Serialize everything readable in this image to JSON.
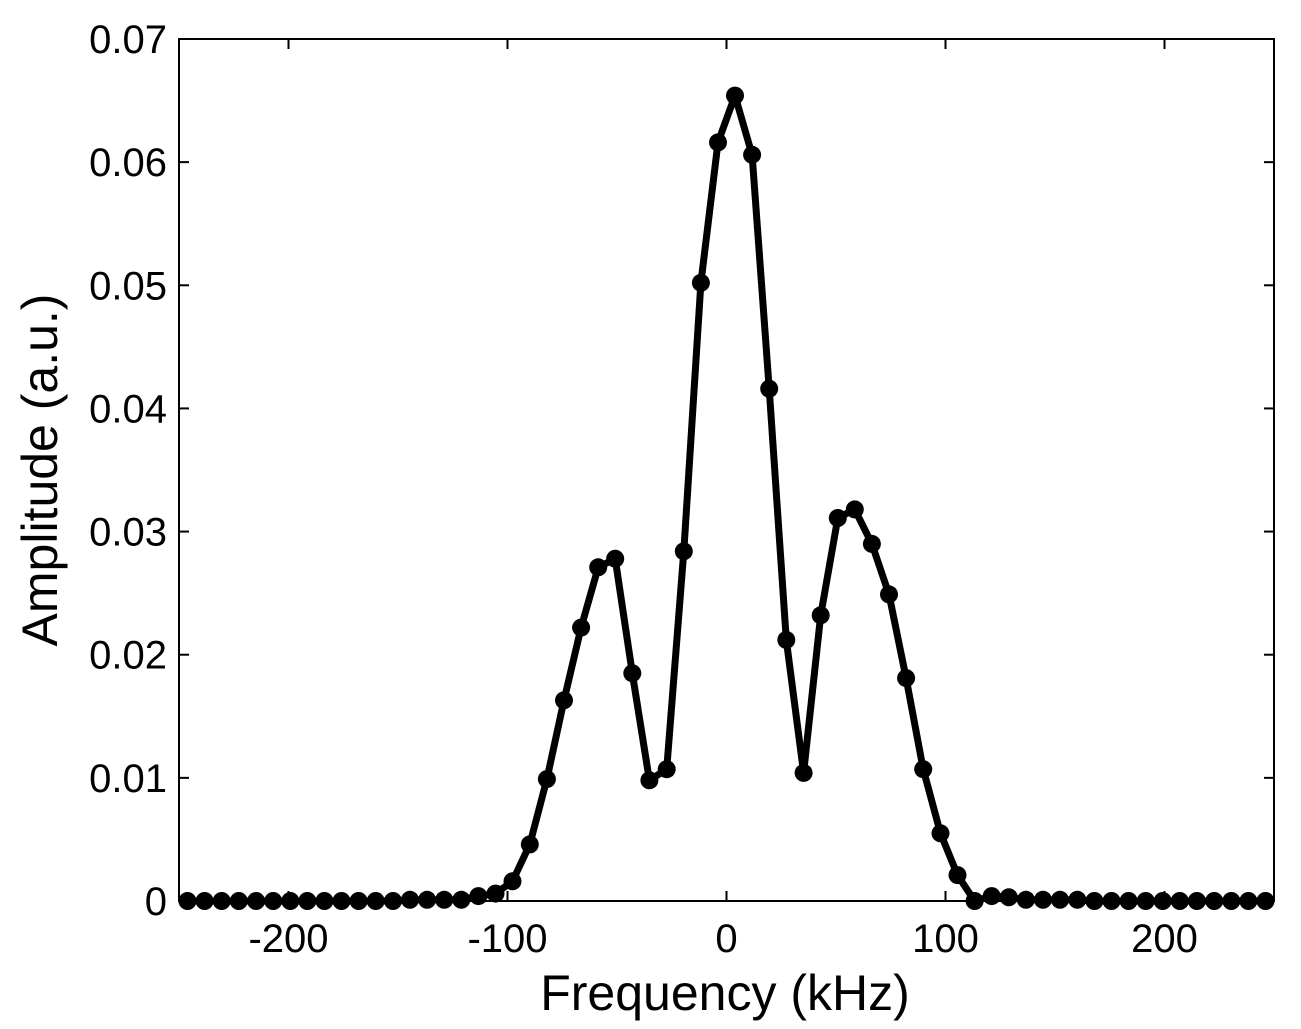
{
  "chart_data": {
    "type": "line",
    "title": "",
    "xlabel": "Frequency (kHz)",
    "ylabel": "Amplitude (a.u.)",
    "xlim": [
      -250,
      250
    ],
    "ylim": [
      0,
      0.07
    ],
    "x_ticks": [
      -200,
      -100,
      0,
      100,
      200
    ],
    "x_tick_labels": [
      "-200",
      "-100",
      "0",
      "100",
      "200"
    ],
    "y_ticks": [
      0,
      0.01,
      0.02,
      0.03,
      0.04,
      0.05,
      0.06,
      0.07
    ],
    "y_tick_labels": [
      "0",
      "0.01",
      "0.02",
      "0.03",
      "0.04",
      "0.05",
      "0.06",
      "0.07"
    ],
    "grid": false,
    "legend": "none",
    "colors": {
      "line": "#000000",
      "marker": "#000000",
      "axes": "#000000",
      "background": "#ffffff"
    },
    "series": [
      {
        "marker": "circle",
        "x": [
          -246.1,
          -238.3,
          -230.5,
          -222.7,
          -214.8,
          -207.0,
          -199.2,
          -191.4,
          -183.6,
          -175.8,
          -168.0,
          -160.2,
          -152.3,
          -144.5,
          -136.7,
          -128.9,
          -121.1,
          -113.3,
          -105.5,
          -97.7,
          -89.8,
          -82.0,
          -74.2,
          -66.4,
          -58.6,
          -50.8,
          -43.0,
          -35.2,
          -27.3,
          -19.5,
          -11.7,
          -3.9,
          3.9,
          11.7,
          19.5,
          27.3,
          35.2,
          43.0,
          50.8,
          58.6,
          66.4,
          74.2,
          82.0,
          89.8,
          97.7,
          105.5,
          113.3,
          121.1,
          128.9,
          136.7,
          144.5,
          152.3,
          160.2,
          168.0,
          175.8,
          183.6,
          191.4,
          199.2,
          207.0,
          214.8,
          222.7,
          230.5,
          238.3,
          246.1
        ],
        "y": [
          0.0,
          0.0,
          0.0,
          0.0,
          0.0,
          0.0,
          0.0,
          0.0,
          0.0,
          0.0,
          0.0,
          0.0,
          0.0,
          0.0001,
          0.0001,
          0.0001,
          0.0001,
          0.0004,
          0.0006,
          0.0016,
          0.0046,
          0.0099,
          0.0163,
          0.0222,
          0.0271,
          0.0278,
          0.0185,
          0.0098,
          0.0107,
          0.0284,
          0.0502,
          0.0616,
          0.0654,
          0.0606,
          0.0416,
          0.0212,
          0.0104,
          0.0232,
          0.0311,
          0.0318,
          0.029,
          0.0249,
          0.0181,
          0.0107,
          0.0055,
          0.0021,
          0.0,
          0.0004,
          0.0003,
          0.0001,
          0.0001,
          0.0001,
          0.0001,
          0.0,
          0.0,
          0.0,
          0.0,
          0.0,
          0.0,
          0.0,
          0.0,
          0.0,
          0.0,
          0.0
        ]
      }
    ]
  }
}
